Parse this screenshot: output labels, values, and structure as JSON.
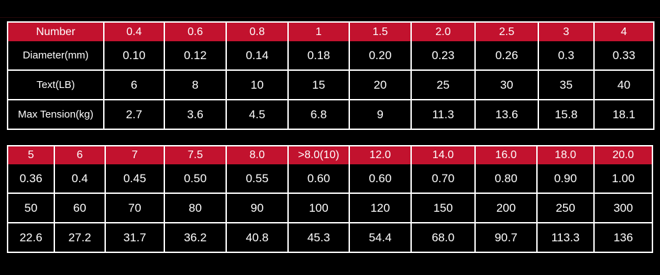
{
  "page": {
    "background_color": "#000000",
    "accent_red": "#c2122e",
    "grid_color": "#ffffff",
    "text_color": "#ffffff"
  },
  "table1": {
    "header": [
      "Number",
      "0.4",
      "0.6",
      "0.8",
      "1",
      "1.5",
      "2.0",
      "2.5",
      "3",
      "4"
    ],
    "rows": [
      {
        "label": "Diameter(mm)",
        "values": [
          "0.10",
          "0.12",
          "0.14",
          "0.18",
          "0.20",
          "0.23",
          "0.26",
          "0.3",
          "0.33"
        ]
      },
      {
        "label": "Text(LB)",
        "values": [
          "6",
          "8",
          "10",
          "15",
          "20",
          "25",
          "30",
          "35",
          "40"
        ]
      },
      {
        "label": "Max Tension(kg)",
        "values": [
          "2.7",
          "3.6",
          "4.5",
          "6.8",
          "9",
          "11.3",
          "13.6",
          "15.8",
          "18.1"
        ]
      }
    ]
  },
  "table2": {
    "header": [
      "5",
      "6",
      "7",
      "7.5",
      "8.0",
      ">8.0(10)",
      "12.0",
      "14.0",
      "16.0",
      "18.0",
      "20.0"
    ],
    "rows": [
      [
        "0.36",
        "0.4",
        "0.45",
        "0.50",
        "0.55",
        "0.60",
        "0.60",
        "0.70",
        "0.80",
        "0.90",
        "1.00"
      ],
      [
        "50",
        "60",
        "70",
        "80",
        "90",
        "100",
        "120",
        "150",
        "200",
        "250",
        "300"
      ],
      [
        "22.6",
        "27.2",
        "31.7",
        "36.2",
        "40.8",
        "45.3",
        "54.4",
        "68.0",
        "90.7",
        "113.3",
        "136"
      ]
    ]
  },
  "chart_data": {
    "type": "table",
    "title": "Fishing line specification table",
    "row_labels": [
      "Number",
      "Diameter(mm)",
      "Text(LB)",
      "Max Tension(kg)"
    ],
    "numbers": [
      "0.4",
      "0.6",
      "0.8",
      "1",
      "1.5",
      "2.0",
      "2.5",
      "3",
      "4",
      "5",
      "6",
      "7",
      "7.5",
      "8.0",
      ">8.0(10)",
      "12.0",
      "14.0",
      "16.0",
      "18.0",
      "20.0"
    ],
    "diameter_mm": [
      0.1,
      0.12,
      0.14,
      0.18,
      0.2,
      0.23,
      0.26,
      0.3,
      0.33,
      0.36,
      0.4,
      0.45,
      0.5,
      0.55,
      0.6,
      0.6,
      0.7,
      0.8,
      0.9,
      1.0
    ],
    "text_lb": [
      6,
      8,
      10,
      15,
      20,
      25,
      30,
      35,
      40,
      50,
      60,
      70,
      80,
      90,
      100,
      120,
      150,
      200,
      250,
      300
    ],
    "max_tension_kg": [
      2.7,
      3.6,
      4.5,
      6.8,
      9,
      11.3,
      13.6,
      15.8,
      18.1,
      22.6,
      27.2,
      31.7,
      36.2,
      40.8,
      45.3,
      54.4,
      68.0,
      90.7,
      113.3,
      136
    ],
    "layout": "split into two stacked tables; upper table has a label column, lower table is a continuation without labels"
  }
}
